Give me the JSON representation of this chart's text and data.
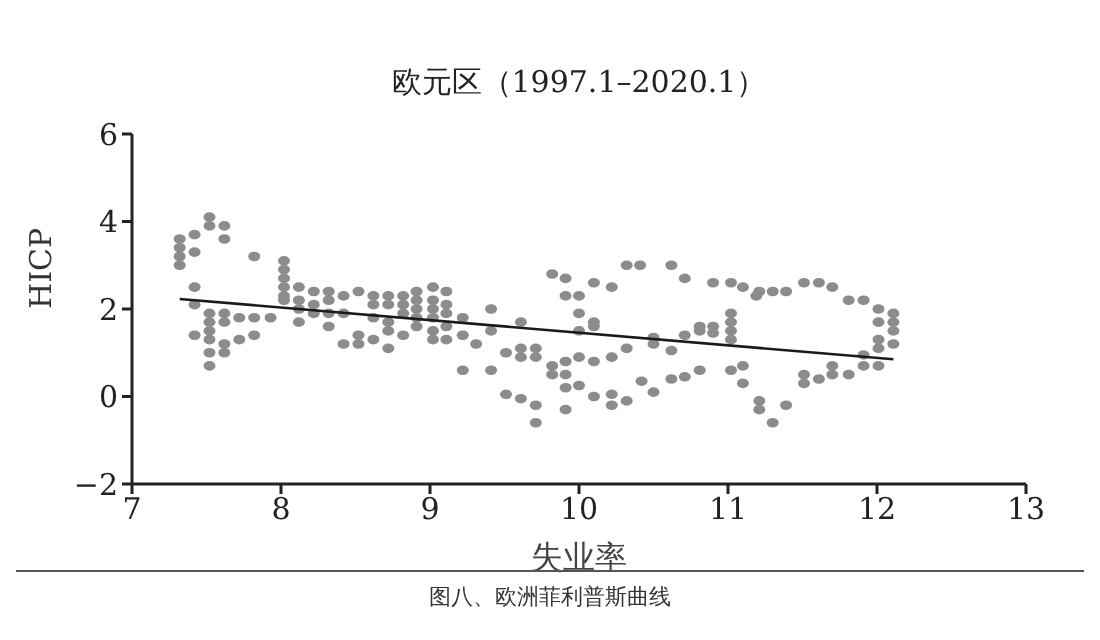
{
  "chart_data": {
    "type": "scatter",
    "title": "欧元区（1997.1–2020.1）",
    "xlabel": "失业率",
    "ylabel": "HICP",
    "annotations": [
      "图八、欧洲菲利普斯曲线"
    ],
    "xlim": [
      7,
      13
    ],
    "xticks": [
      7,
      8,
      9,
      10,
      11,
      12,
      13
    ],
    "ylim": [
      -2,
      6
    ],
    "yticks": [
      -2,
      0,
      2,
      4,
      6
    ],
    "grid": false,
    "marker": "circle",
    "series": [
      {
        "color": "#8c8c8c",
        "x": [
          7.32,
          7.32,
          7.32,
          7.32,
          7.42,
          7.42,
          7.42,
          7.42,
          7.42,
          7.52,
          7.52,
          7.52,
          7.52,
          7.52,
          7.52,
          7.52,
          7.52,
          7.62,
          7.62,
          7.62,
          7.62,
          7.62,
          7.62,
          7.72,
          7.72,
          7.82,
          7.82,
          7.82,
          7.93,
          8.02,
          8.02,
          8.02,
          8.02,
          8.02,
          8.02,
          8.12,
          8.12,
          8.12,
          8.12,
          8.22,
          8.22,
          8.22,
          8.32,
          8.32,
          8.32,
          8.32,
          8.42,
          8.42,
          8.42,
          8.52,
          8.52,
          8.52,
          8.62,
          8.62,
          8.62,
          8.62,
          8.72,
          8.72,
          8.72,
          8.72,
          8.72,
          8.82,
          8.82,
          8.82,
          8.82,
          8.91,
          8.91,
          8.91,
          8.91,
          8.91,
          9.02,
          9.02,
          9.02,
          9.02,
          9.02,
          9.02,
          9.11,
          9.11,
          9.11,
          9.11,
          9.11,
          9.22,
          9.22,
          9.22,
          9.31,
          9.41,
          9.41,
          9.41,
          9.51,
          9.51,
          9.61,
          9.61,
          9.61,
          9.61,
          9.71,
          9.71,
          9.71,
          9.71,
          9.82,
          9.82,
          9.82,
          9.91,
          9.91,
          9.91,
          9.91,
          9.91,
          9.91,
          10.0,
          10.0,
          10.0,
          10.0,
          10.0,
          10.1,
          10.1,
          10.1,
          10.1,
          10.1,
          10.22,
          10.22,
          10.22,
          10.22,
          10.32,
          10.32,
          10.32,
          10.41,
          10.42,
          10.5,
          10.5,
          10.5,
          10.62,
          10.62,
          10.62,
          10.71,
          10.71,
          10.71,
          10.81,
          10.81,
          10.81,
          10.9,
          10.9,
          10.9,
          11.02,
          11.02,
          11.02,
          11.02,
          11.02,
          11.02,
          11.1,
          11.1,
          11.1,
          11.19,
          11.21,
          11.21,
          11.21,
          11.3,
          11.3,
          11.39,
          11.39,
          11.51,
          11.51,
          11.51,
          11.61,
          11.61,
          11.7,
          11.7,
          11.7,
          11.81,
          11.81,
          11.91,
          11.91,
          11.91,
          12.01,
          12.01,
          12.01,
          12.01,
          12.01,
          12.11,
          12.11,
          12.11,
          12.11
        ],
        "values": [
          3.6,
          3.4,
          3.2,
          3.0,
          3.7,
          3.3,
          2.5,
          2.1,
          1.4,
          4.1,
          3.9,
          1.9,
          1.7,
          1.5,
          1.3,
          1.0,
          0.7,
          3.9,
          3.6,
          1.9,
          1.7,
          1.2,
          1.0,
          1.8,
          1.3,
          3.2,
          1.8,
          1.4,
          1.8,
          3.1,
          2.9,
          2.7,
          2.5,
          2.3,
          2.2,
          2.5,
          2.2,
          2.0,
          1.7,
          2.4,
          2.1,
          1.9,
          2.4,
          2.2,
          1.9,
          1.6,
          2.3,
          1.9,
          1.2,
          2.4,
          1.4,
          1.2,
          2.3,
          2.1,
          1.8,
          1.3,
          2.3,
          2.1,
          1.7,
          1.5,
          1.1,
          2.3,
          2.1,
          1.9,
          1.4,
          2.4,
          2.2,
          2.0,
          1.8,
          1.6,
          2.5,
          2.2,
          2.0,
          1.8,
          1.5,
          1.3,
          2.4,
          2.1,
          1.9,
          1.6,
          1.3,
          1.8,
          1.4,
          0.6,
          1.2,
          2.0,
          1.5,
          0.6,
          1.0,
          0.05,
          1.7,
          1.1,
          0.9,
          -0.05,
          1.1,
          0.9,
          -0.2,
          -0.6,
          2.8,
          0.7,
          0.5,
          2.7,
          2.3,
          0.8,
          0.5,
          0.2,
          -0.3,
          2.3,
          1.9,
          1.5,
          0.9,
          0.25,
          2.6,
          1.7,
          1.6,
          0.8,
          0.0,
          2.5,
          0.9,
          0.05,
          -0.2,
          3.0,
          1.1,
          -0.1,
          3.0,
          0.35,
          1.35,
          1.2,
          0.1,
          3.0,
          1.05,
          0.4,
          2.7,
          1.4,
          0.45,
          1.6,
          1.5,
          0.6,
          2.6,
          1.6,
          1.45,
          2.6,
          1.9,
          1.7,
          1.5,
          1.3,
          0.6,
          2.5,
          0.7,
          0.3,
          2.3,
          2.4,
          -0.1,
          -0.3,
          2.4,
          -0.6,
          2.4,
          -0.2,
          2.6,
          0.5,
          0.3,
          2.6,
          0.4,
          2.5,
          0.7,
          0.5,
          2.2,
          0.5,
          2.2,
          0.95,
          0.7,
          2.0,
          1.7,
          1.3,
          1.1,
          0.7,
          1.9,
          1.7,
          1.5,
          1.2
        ]
      },
      {
        "type": "line",
        "color": "#1a1a1a",
        "x": [
          7.32,
          12.11
        ],
        "values": [
          2.23,
          0.85
        ],
        "marker": "none"
      }
    ]
  }
}
